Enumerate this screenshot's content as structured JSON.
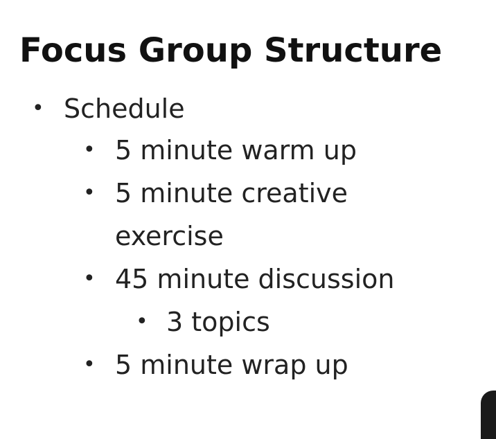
{
  "slide": {
    "title": "Focus Group Structure",
    "bullets": [
      {
        "text": "Schedule"
      },
      {
        "text": "5 minute warm up"
      },
      {
        "text_line1": "5 minute creative",
        "text_line2": "exercise"
      },
      {
        "text": "45 minute discussion"
      },
      {
        "text": "3 topics"
      },
      {
        "text": "5 minute wrap up"
      }
    ],
    "bullet_glyph": "•"
  }
}
